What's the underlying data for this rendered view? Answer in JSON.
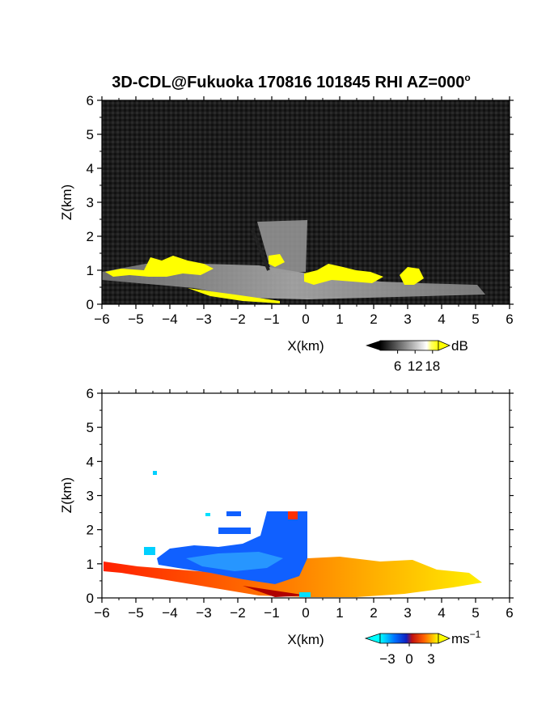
{
  "figure": {
    "title": "3D-CDL@Fukuoka 170816 101845 RHI AZ=000",
    "title_superscript": "o"
  },
  "chart_data": [
    {
      "type": "heatmap",
      "panel": "reflectivity",
      "xlabel": "X(km)",
      "ylabel": "Z(km)",
      "xlim": [
        -6,
        6
      ],
      "ylim": [
        0,
        6
      ],
      "x_ticks": [
        "−6",
        "−5",
        "−4",
        "−3",
        "−2",
        "−1",
        "0",
        "1",
        "2",
        "3",
        "4",
        "5",
        "6"
      ],
      "y_ticks": [
        "0",
        "1",
        "2",
        "3",
        "4",
        "5",
        "6"
      ],
      "colorbar": {
        "unit": "dB",
        "ticks": [
          "6",
          "12",
          "18"
        ],
        "tick_values": [
          6,
          12,
          18
        ],
        "range": [
          0,
          20
        ],
        "colors": [
          "#000000",
          "#ffffff",
          "#ffff00"
        ]
      },
      "background_color": "#1a1a1a",
      "high_value_color": "#ffff00",
      "features": {
        "bright_echo_extent_x": [
          -6,
          4.8
        ],
        "bright_echo_top_z": 1.4,
        "tower_x": [
          -1.3,
          0
        ],
        "tower_top_z": 2.5,
        "yellow_layer_z": [
          0.8,
          1.3
        ]
      }
    },
    {
      "type": "heatmap",
      "panel": "doppler_velocity",
      "xlabel": "X(km)",
      "ylabel": "Z(km)",
      "xlim": [
        -6,
        6
      ],
      "ylim": [
        0,
        6
      ],
      "x_ticks": [
        "−6",
        "−5",
        "−4",
        "−3",
        "−2",
        "−1",
        "0",
        "1",
        "2",
        "3",
        "4",
        "5",
        "6"
      ],
      "y_ticks": [
        "0",
        "1",
        "2",
        "3",
        "4",
        "5",
        "6"
      ],
      "colorbar": {
        "unit": "ms",
        "unit_superscript": "−1",
        "ticks": [
          "−3",
          "0",
          "3"
        ],
        "tick_values": [
          -3,
          0,
          3
        ],
        "range": [
          -4,
          4
        ],
        "colors": [
          "#00ffff",
          "#0050ff",
          "#ff0000",
          "#ffff00"
        ]
      },
      "background_color": "#ffffff",
      "features": {
        "negative_region_x": [
          -4.5,
          0
        ],
        "negative_region_z": [
          0.8,
          2.4
        ],
        "positive_region_x": [
          -6,
          5.2
        ],
        "positive_region_z": [
          0,
          1.0
        ],
        "isolated_echo": {
          "x": -4.45,
          "z": 3.65
        }
      }
    }
  ]
}
